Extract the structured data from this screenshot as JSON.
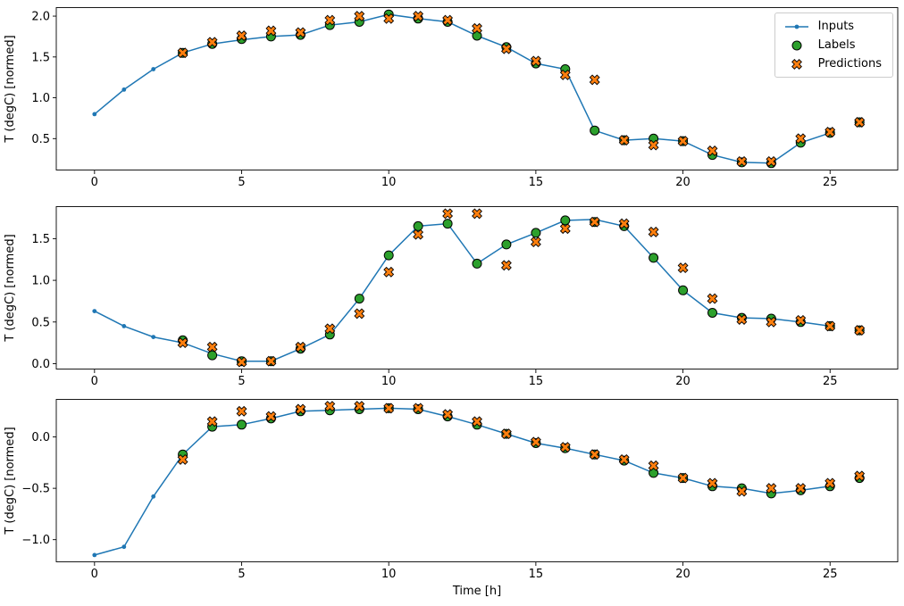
{
  "figure": {
    "xlabel": "Time [h]",
    "ylabel": "T (degC) [normed]",
    "legend": [
      "Inputs",
      "Labels",
      "Predictions"
    ],
    "colors": {
      "inputs": "#1f77b4",
      "labels": "#2ca02c",
      "predictions": "#ff7f0e",
      "edge": "#000000",
      "axes": "#000000",
      "background": "#ffffff"
    }
  },
  "chart_data": [
    {
      "type": "line",
      "title": "",
      "xlabel": "",
      "ylabel": "T (degC) [normed]",
      "xlim": [
        -1.3,
        27.3
      ],
      "xticks": [
        0,
        5,
        10,
        15,
        20,
        25
      ],
      "ylim": [
        0.11,
        2.11
      ],
      "yticks": [
        0.5,
        1.0,
        1.5,
        2.0
      ],
      "legend_position": "upper right",
      "grid": false,
      "series": [
        {
          "name": "Inputs",
          "type": "line",
          "x": [
            0,
            1,
            2,
            3,
            4,
            5,
            6,
            7,
            8,
            9,
            10,
            11,
            12,
            13,
            14,
            15,
            16,
            17,
            18,
            19,
            20,
            21,
            22,
            23,
            24,
            25
          ],
          "y": [
            0.8,
            1.1,
            1.35,
            1.55,
            1.66,
            1.71,
            1.75,
            1.77,
            1.89,
            1.93,
            2.02,
            1.97,
            1.93,
            1.76,
            1.62,
            1.42,
            1.35,
            0.6,
            0.48,
            0.5,
            0.47,
            0.3,
            0.21,
            0.2,
            0.45,
            0.57
          ]
        },
        {
          "name": "Labels",
          "type": "scatter-circle",
          "x": [
            3,
            4,
            5,
            6,
            7,
            8,
            9,
            10,
            11,
            12,
            13,
            14,
            15,
            16,
            17,
            18,
            19,
            20,
            21,
            22,
            23,
            24,
            25,
            26
          ],
          "y": [
            1.55,
            1.66,
            1.72,
            1.75,
            1.77,
            1.89,
            1.93,
            2.02,
            1.97,
            1.93,
            1.76,
            1.62,
            1.42,
            1.35,
            0.6,
            0.48,
            0.5,
            0.47,
            0.3,
            0.21,
            0.2,
            0.45,
            0.57,
            0.7
          ]
        },
        {
          "name": "Predictions",
          "type": "scatter-x",
          "x": [
            3,
            4,
            5,
            6,
            7,
            8,
            9,
            10,
            11,
            12,
            13,
            14,
            15,
            16,
            17,
            18,
            19,
            20,
            21,
            22,
            23,
            24,
            25,
            26
          ],
          "y": [
            1.55,
            1.68,
            1.76,
            1.82,
            1.8,
            1.95,
            2.0,
            1.97,
            2.0,
            1.95,
            1.85,
            1.6,
            1.45,
            1.28,
            1.22,
            0.48,
            0.42,
            0.47,
            0.35,
            0.22,
            0.22,
            0.5,
            0.58,
            0.7
          ]
        }
      ]
    },
    {
      "type": "line",
      "title": "",
      "xlabel": "",
      "ylabel": "T (degC) [normed]",
      "xlim": [
        -1.3,
        27.3
      ],
      "xticks": [
        0,
        5,
        10,
        15,
        20,
        25
      ],
      "ylim": [
        -0.07,
        1.89
      ],
      "yticks": [
        0.0,
        0.5,
        1.0,
        1.5
      ],
      "grid": false,
      "series": [
        {
          "name": "Inputs",
          "type": "line",
          "x": [
            0,
            1,
            2,
            3,
            4,
            5,
            6,
            7,
            8,
            9,
            10,
            11,
            12,
            13,
            14,
            15,
            16,
            17,
            18,
            19,
            20,
            21,
            22,
            23,
            24,
            25
          ],
          "y": [
            0.63,
            0.45,
            0.32,
            0.25,
            0.12,
            0.03,
            0.03,
            0.18,
            0.35,
            0.78,
            1.3,
            1.65,
            1.68,
            1.2,
            1.43,
            1.57,
            1.72,
            1.73,
            1.65,
            1.27,
            0.88,
            0.61,
            0.55,
            0.54,
            0.5,
            0.45
          ]
        },
        {
          "name": "Labels",
          "type": "scatter-circle",
          "x": [
            3,
            4,
            5,
            6,
            7,
            8,
            9,
            10,
            11,
            12,
            13,
            14,
            15,
            16,
            17,
            18,
            19,
            20,
            21,
            22,
            23,
            24,
            25,
            26
          ],
          "y": [
            0.28,
            0.1,
            0.03,
            0.03,
            0.18,
            0.35,
            0.78,
            1.3,
            1.65,
            1.68,
            1.2,
            1.43,
            1.57,
            1.72,
            1.7,
            1.65,
            1.27,
            0.88,
            0.61,
            0.55,
            0.54,
            0.5,
            0.45,
            0.4
          ]
        },
        {
          "name": "Predictions",
          "type": "scatter-x",
          "x": [
            3,
            4,
            5,
            6,
            7,
            8,
            9,
            10,
            11,
            12,
            13,
            14,
            15,
            16,
            17,
            18,
            19,
            20,
            21,
            22,
            23,
            24,
            25,
            26
          ],
          "y": [
            0.25,
            0.2,
            0.02,
            0.03,
            0.2,
            0.42,
            0.6,
            1.1,
            1.55,
            1.8,
            1.8,
            1.18,
            1.46,
            1.62,
            1.7,
            1.68,
            1.58,
            1.15,
            0.78,
            0.53,
            0.5,
            0.52,
            0.45,
            0.4
          ]
        }
      ]
    },
    {
      "type": "line",
      "title": "",
      "xlabel": "Time [h]",
      "ylabel": "T (degC) [normed]",
      "xlim": [
        -1.3,
        27.3
      ],
      "xticks": [
        0,
        5,
        10,
        15,
        20,
        25
      ],
      "ylim": [
        -1.22,
        0.37
      ],
      "yticks": [
        -1.0,
        -0.5,
        0.0
      ],
      "grid": false,
      "series": [
        {
          "name": "Inputs",
          "type": "line",
          "x": [
            0,
            1,
            2,
            3,
            4,
            5,
            6,
            7,
            8,
            9,
            10,
            11,
            12,
            13,
            14,
            15,
            16,
            17,
            18,
            19,
            20,
            21,
            22,
            23,
            24,
            25
          ],
          "y": [
            -1.15,
            -1.07,
            -0.58,
            -0.17,
            0.1,
            0.12,
            0.18,
            0.25,
            0.26,
            0.27,
            0.28,
            0.27,
            0.2,
            0.12,
            0.03,
            -0.06,
            -0.11,
            -0.17,
            -0.23,
            -0.35,
            -0.4,
            -0.48,
            -0.5,
            -0.55,
            -0.52,
            -0.48
          ]
        },
        {
          "name": "Labels",
          "type": "scatter-circle",
          "x": [
            3,
            4,
            5,
            6,
            7,
            8,
            9,
            10,
            11,
            12,
            13,
            14,
            15,
            16,
            17,
            18,
            19,
            20,
            21,
            22,
            23,
            24,
            25,
            26
          ],
          "y": [
            -0.17,
            0.1,
            0.12,
            0.18,
            0.25,
            0.26,
            0.27,
            0.28,
            0.27,
            0.2,
            0.12,
            0.03,
            -0.06,
            -0.11,
            -0.17,
            -0.23,
            -0.35,
            -0.4,
            -0.48,
            -0.5,
            -0.55,
            -0.52,
            -0.48,
            -0.4
          ]
        },
        {
          "name": "Predictions",
          "type": "scatter-x",
          "x": [
            3,
            4,
            5,
            6,
            7,
            8,
            9,
            10,
            11,
            12,
            13,
            14,
            15,
            16,
            17,
            18,
            19,
            20,
            21,
            22,
            23,
            24,
            25,
            26
          ],
          "y": [
            -0.22,
            0.15,
            0.25,
            0.2,
            0.27,
            0.3,
            0.3,
            0.28,
            0.28,
            0.22,
            0.15,
            0.03,
            -0.05,
            -0.1,
            -0.17,
            -0.22,
            -0.28,
            -0.4,
            -0.45,
            -0.53,
            -0.5,
            -0.5,
            -0.45,
            -0.38
          ]
        }
      ]
    }
  ]
}
